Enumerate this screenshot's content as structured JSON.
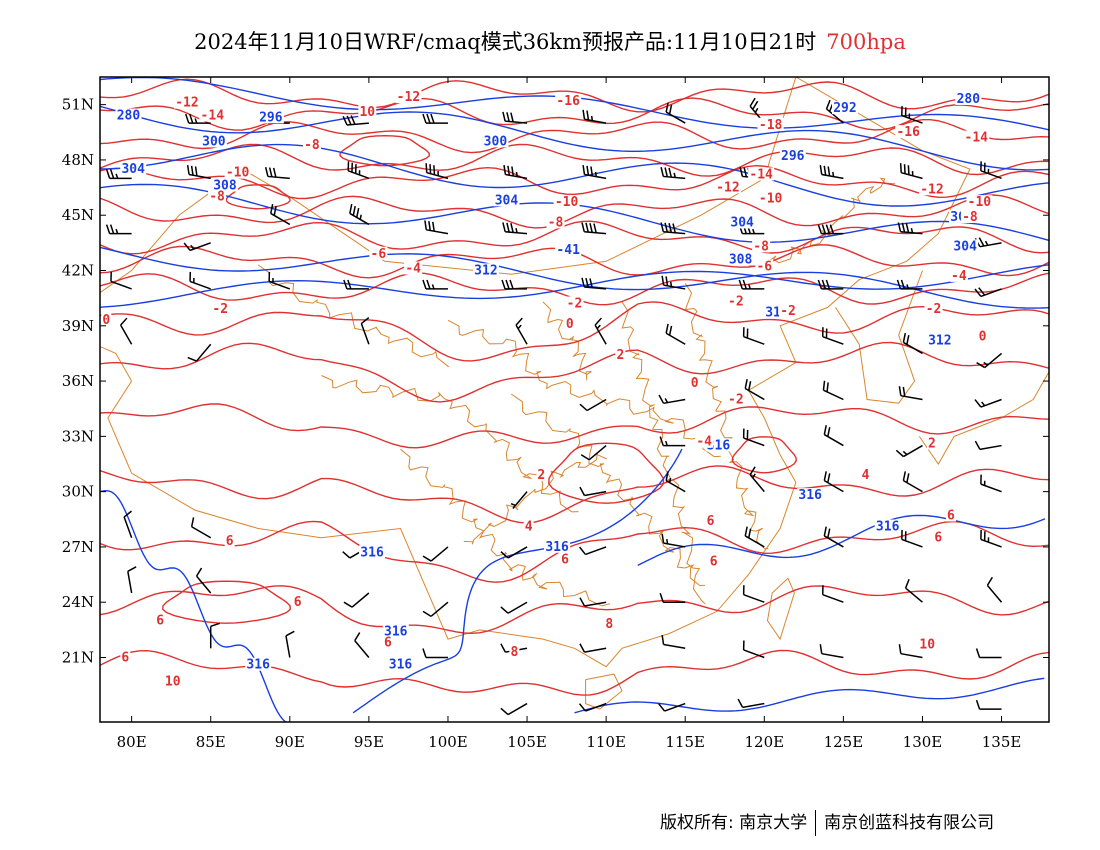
{
  "title": {
    "main": "2024年11月10日WRF/cmaq模式36km预报产品:11月10日21时",
    "level": "700hpa"
  },
  "map": {
    "lon_range": [
      78,
      138
    ],
    "lat_range": [
      17.5,
      52.5
    ],
    "x_ticks": [
      "80E",
      "85E",
      "90E",
      "95E",
      "100E",
      "105E",
      "110E",
      "115E",
      "120E",
      "125E",
      "130E",
      "135E"
    ],
    "x_tick_values": [
      80,
      85,
      90,
      95,
      100,
      105,
      110,
      115,
      120,
      125,
      130,
      135
    ],
    "y_ticks": [
      "51N",
      "48N",
      "45N",
      "42N",
      "39N",
      "36N",
      "33N",
      "30N",
      "27N",
      "24N",
      "21N"
    ],
    "y_tick_values": [
      51,
      48,
      45,
      42,
      39,
      36,
      33,
      30,
      27,
      24,
      21
    ],
    "colors": {
      "geopotential_contour": "#1a3fe0",
      "temperature_contour": "#e03030",
      "boundaries": "#d9862e",
      "wind_barbs": "#000000"
    },
    "geopotential_labels": [
      {
        "text": "280",
        "lon": 79.8,
        "lat": 50.3
      },
      {
        "text": "300",
        "lon": 85.2,
        "lat": 48.9
      },
      {
        "text": "296",
        "lon": 88.8,
        "lat": 50.2
      },
      {
        "text": "300",
        "lon": 103.0,
        "lat": 48.9
      },
      {
        "text": "304",
        "lon": 80.1,
        "lat": 47.4
      },
      {
        "text": "308",
        "lon": 85.9,
        "lat": 46.5
      },
      {
        "text": "304",
        "lon": 103.7,
        "lat": 45.7
      },
      {
        "text": "312",
        "lon": 102.4,
        "lat": 41.9
      },
      {
        "text": "-41",
        "lon": 107.6,
        "lat": 43.0
      },
      {
        "text": "292",
        "lon": 125.1,
        "lat": 50.7
      },
      {
        "text": "296",
        "lon": 121.8,
        "lat": 48.1
      },
      {
        "text": "304",
        "lon": 118.6,
        "lat": 44.5
      },
      {
        "text": "308",
        "lon": 118.5,
        "lat": 42.5
      },
      {
        "text": "312",
        "lon": 120.8,
        "lat": 39.6
      },
      {
        "text": "300",
        "lon": 132.5,
        "lat": 44.8
      },
      {
        "text": "304",
        "lon": 132.7,
        "lat": 43.2
      },
      {
        "text": "312",
        "lon": 131.1,
        "lat": 38.1
      },
      {
        "text": "280",
        "lon": 132.9,
        "lat": 51.2
      },
      {
        "text": "316",
        "lon": 117.1,
        "lat": 32.4
      },
      {
        "text": "316",
        "lon": 106.9,
        "lat": 26.9
      },
      {
        "text": "316",
        "lon": 95.2,
        "lat": 26.6
      },
      {
        "text": "316",
        "lon": 96.7,
        "lat": 22.3
      },
      {
        "text": "316",
        "lon": 97.0,
        "lat": 20.5
      },
      {
        "text": "316",
        "lon": 88.0,
        "lat": 20.5
      },
      {
        "text": "316",
        "lon": 122.9,
        "lat": 29.7
      },
      {
        "text": "316",
        "lon": 127.8,
        "lat": 28.0
      }
    ],
    "temperature_labels": [
      {
        "text": "-12",
        "lon": 83.5,
        "lat": 51.0
      },
      {
        "text": "-14",
        "lon": 85.1,
        "lat": 50.3
      },
      {
        "text": "-12",
        "lon": 97.5,
        "lat": 51.3
      },
      {
        "text": "-16",
        "lon": 107.6,
        "lat": 51.1
      },
      {
        "text": "10",
        "lon": 94.9,
        "lat": 50.5
      },
      {
        "text": "-8",
        "lon": 91.4,
        "lat": 48.7
      },
      {
        "text": "-10",
        "lon": 86.7,
        "lat": 47.2
      },
      {
        "text": "-8",
        "lon": 85.4,
        "lat": 45.9
      },
      {
        "text": "-10",
        "lon": 107.5,
        "lat": 45.6
      },
      {
        "text": "-8",
        "lon": 106.8,
        "lat": 44.5
      },
      {
        "text": "-6",
        "lon": 95.6,
        "lat": 42.8
      },
      {
        "text": "-4",
        "lon": 97.8,
        "lat": 42.0
      },
      {
        "text": "-2",
        "lon": 85.6,
        "lat": 39.8
      },
      {
        "text": "0",
        "lon": 78.4,
        "lat": 39.2
      },
      {
        "text": "-18",
        "lon": 120.4,
        "lat": 49.8
      },
      {
        "text": "-16",
        "lon": 129.1,
        "lat": 49.4
      },
      {
        "text": "-14",
        "lon": 133.4,
        "lat": 49.1
      },
      {
        "text": "-14",
        "lon": 119.8,
        "lat": 47.1
      },
      {
        "text": "-12",
        "lon": 117.7,
        "lat": 46.4
      },
      {
        "text": "-12",
        "lon": 130.6,
        "lat": 46.3
      },
      {
        "text": "-10",
        "lon": 120.4,
        "lat": 45.8
      },
      {
        "text": "-10",
        "lon": 133.6,
        "lat": 45.6
      },
      {
        "text": "-8",
        "lon": 133.0,
        "lat": 44.8
      },
      {
        "text": "-8",
        "lon": 119.8,
        "lat": 43.2
      },
      {
        "text": "-6",
        "lon": 120.0,
        "lat": 42.1
      },
      {
        "text": "-4",
        "lon": 132.3,
        "lat": 41.6
      },
      {
        "text": "-2",
        "lon": 118.2,
        "lat": 40.2
      },
      {
        "text": "-2",
        "lon": 121.5,
        "lat": 39.7
      },
      {
        "text": "-2",
        "lon": 130.7,
        "lat": 39.8
      },
      {
        "text": "-2",
        "lon": 108.0,
        "lat": 40.1
      },
      {
        "text": "0",
        "lon": 107.7,
        "lat": 39.0
      },
      {
        "text": "0",
        "lon": 133.8,
        "lat": 38.3
      },
      {
        "text": "2",
        "lon": 110.9,
        "lat": 37.3
      },
      {
        "text": "0",
        "lon": 115.6,
        "lat": 35.8
      },
      {
        "text": "-2",
        "lon": 118.2,
        "lat": 34.9
      },
      {
        "text": "-4",
        "lon": 116.2,
        "lat": 32.6
      },
      {
        "text": "2",
        "lon": 130.6,
        "lat": 32.5
      },
      {
        "text": "2",
        "lon": 105.9,
        "lat": 30.8
      },
      {
        "text": "4",
        "lon": 126.4,
        "lat": 30.8
      },
      {
        "text": "4",
        "lon": 105.1,
        "lat": 28.0
      },
      {
        "text": "6",
        "lon": 107.4,
        "lat": 26.2
      },
      {
        "text": "6",
        "lon": 86.2,
        "lat": 27.2
      },
      {
        "text": "6",
        "lon": 90.5,
        "lat": 23.9
      },
      {
        "text": "6",
        "lon": 116.6,
        "lat": 28.3
      },
      {
        "text": "6",
        "lon": 116.8,
        "lat": 26.1
      },
      {
        "text": "6",
        "lon": 131.8,
        "lat": 28.6
      },
      {
        "text": "6",
        "lon": 131.0,
        "lat": 27.4
      },
      {
        "text": "6",
        "lon": 81.8,
        "lat": 22.9
      },
      {
        "text": "6",
        "lon": 96.2,
        "lat": 21.7
      },
      {
        "text": "6",
        "lon": 79.6,
        "lat": 20.9
      },
      {
        "text": "10",
        "lon": 82.6,
        "lat": 19.6
      },
      {
        "text": "8",
        "lon": 110.2,
        "lat": 22.7
      },
      {
        "text": "8",
        "lon": 104.2,
        "lat": 21.2
      },
      {
        "text": "10",
        "lon": 130.3,
        "lat": 21.6
      }
    ],
    "wind_barbs": [
      {
        "lon": 85,
        "lat": 50.0,
        "dir": 270,
        "speed": 25
      },
      {
        "lon": 90,
        "lat": 50.0,
        "dir": 270,
        "speed": 25
      },
      {
        "lon": 95,
        "lat": 50.0,
        "dir": 265,
        "speed": 30
      },
      {
        "lon": 100,
        "lat": 50.0,
        "dir": 270,
        "speed": 30
      },
      {
        "lon": 105,
        "lat": 50.0,
        "dir": 275,
        "speed": 30
      },
      {
        "lon": 110,
        "lat": 50.0,
        "dir": 280,
        "speed": 25
      },
      {
        "lon": 115,
        "lat": 50.0,
        "dir": 300,
        "speed": 20
      },
      {
        "lon": 120,
        "lat": 50.0,
        "dir": 320,
        "speed": 25
      },
      {
        "lon": 125,
        "lat": 50.0,
        "dir": 310,
        "speed": 20
      },
      {
        "lon": 130,
        "lat": 50.0,
        "dir": 290,
        "speed": 25
      },
      {
        "lon": 80,
        "lat": 47.0,
        "dir": 270,
        "speed": 25
      },
      {
        "lon": 85,
        "lat": 47.0,
        "dir": 280,
        "speed": 30
      },
      {
        "lon": 90,
        "lat": 47.0,
        "dir": 275,
        "speed": 30
      },
      {
        "lon": 95,
        "lat": 47.0,
        "dir": 290,
        "speed": 35
      },
      {
        "lon": 100,
        "lat": 47.0,
        "dir": 285,
        "speed": 35
      },
      {
        "lon": 105,
        "lat": 47.0,
        "dir": 280,
        "speed": 35
      },
      {
        "lon": 110,
        "lat": 47.0,
        "dir": 280,
        "speed": 35
      },
      {
        "lon": 115,
        "lat": 47.0,
        "dir": 275,
        "speed": 35
      },
      {
        "lon": 120,
        "lat": 47.0,
        "dir": 275,
        "speed": 35
      },
      {
        "lon": 125,
        "lat": 47.0,
        "dir": 280,
        "speed": 35
      },
      {
        "lon": 130,
        "lat": 47.0,
        "dir": 285,
        "speed": 35
      },
      {
        "lon": 135,
        "lat": 47.0,
        "dir": 290,
        "speed": 25
      },
      {
        "lon": 80,
        "lat": 44.0,
        "dir": 270,
        "speed": 25
      },
      {
        "lon": 85,
        "lat": 43.5,
        "dir": 250,
        "speed": 15
      },
      {
        "lon": 90,
        "lat": 44.5,
        "dir": 300,
        "speed": 20
      },
      {
        "lon": 95,
        "lat": 44.5,
        "dir": 300,
        "speed": 35
      },
      {
        "lon": 100,
        "lat": 44.0,
        "dir": 280,
        "speed": 30
      },
      {
        "lon": 105,
        "lat": 44.0,
        "dir": 275,
        "speed": 35
      },
      {
        "lon": 110,
        "lat": 44.0,
        "dir": 275,
        "speed": 40
      },
      {
        "lon": 115,
        "lat": 44.0,
        "dir": 275,
        "speed": 40
      },
      {
        "lon": 120,
        "lat": 44.0,
        "dir": 270,
        "speed": 35
      },
      {
        "lon": 125,
        "lat": 44.0,
        "dir": 270,
        "speed": 40
      },
      {
        "lon": 130,
        "lat": 44.0,
        "dir": 275,
        "speed": 35
      },
      {
        "lon": 135,
        "lat": 43.5,
        "dir": 260,
        "speed": 25
      },
      {
        "lon": 80,
        "lat": 41.0,
        "dir": 290,
        "speed": 10
      },
      {
        "lon": 85,
        "lat": 41.0,
        "dir": 290,
        "speed": 15
      },
      {
        "lon": 90,
        "lat": 41.0,
        "dir": 290,
        "speed": 15
      },
      {
        "lon": 95,
        "lat": 41.0,
        "dir": 270,
        "speed": 20
      },
      {
        "lon": 100,
        "lat": 41.0,
        "dir": 270,
        "speed": 25
      },
      {
        "lon": 105,
        "lat": 41.0,
        "dir": 270,
        "speed": 30
      },
      {
        "lon": 110,
        "lat": 41.0,
        "dir": 275,
        "speed": 30
      },
      {
        "lon": 115,
        "lat": 41.0,
        "dir": 280,
        "speed": 25
      },
      {
        "lon": 120,
        "lat": 41.0,
        "dir": 270,
        "speed": 25
      },
      {
        "lon": 125,
        "lat": 41.0,
        "dir": 270,
        "speed": 30
      },
      {
        "lon": 130,
        "lat": 41.0,
        "dir": 270,
        "speed": 25
      },
      {
        "lon": 135,
        "lat": 41.0,
        "dir": 250,
        "speed": 20
      },
      {
        "lon": 80,
        "lat": 38.0,
        "dir": 330,
        "speed": 10
      },
      {
        "lon": 85,
        "lat": 38.0,
        "dir": 220,
        "speed": 10
      },
      {
        "lon": 95,
        "lat": 38.0,
        "dir": 340,
        "speed": 10
      },
      {
        "lon": 105,
        "lat": 38.0,
        "dir": 330,
        "speed": 15
      },
      {
        "lon": 110,
        "lat": 38.0,
        "dir": 330,
        "speed": 15
      },
      {
        "lon": 115,
        "lat": 38.0,
        "dir": 300,
        "speed": 20
      },
      {
        "lon": 120,
        "lat": 38.0,
        "dir": 290,
        "speed": 20
      },
      {
        "lon": 125,
        "lat": 38.0,
        "dir": 290,
        "speed": 20
      },
      {
        "lon": 130,
        "lat": 37.5,
        "dir": 300,
        "speed": 20
      },
      {
        "lon": 135,
        "lat": 37.5,
        "dir": 230,
        "speed": 15
      },
      {
        "lon": 110,
        "lat": 35.0,
        "dir": 240,
        "speed": 10
      },
      {
        "lon": 115,
        "lat": 35.0,
        "dir": 260,
        "speed": 15
      },
      {
        "lon": 120,
        "lat": 35.0,
        "dir": 300,
        "speed": 20
      },
      {
        "lon": 125,
        "lat": 35.0,
        "dir": 295,
        "speed": 20
      },
      {
        "lon": 130,
        "lat": 35.0,
        "dir": 280,
        "speed": 20
      },
      {
        "lon": 135,
        "lat": 35.0,
        "dir": 250,
        "speed": 15
      },
      {
        "lon": 110,
        "lat": 32.5,
        "dir": 230,
        "speed": 10
      },
      {
        "lon": 115,
        "lat": 32.5,
        "dir": 270,
        "speed": 15
      },
      {
        "lon": 120,
        "lat": 32.5,
        "dir": 290,
        "speed": 20
      },
      {
        "lon": 125,
        "lat": 32.5,
        "dir": 300,
        "speed": 20
      },
      {
        "lon": 130,
        "lat": 32.5,
        "dir": 240,
        "speed": 15
      },
      {
        "lon": 135,
        "lat": 32.5,
        "dir": 260,
        "speed": 10
      },
      {
        "lon": 105,
        "lat": 30.0,
        "dir": 220,
        "speed": 5
      },
      {
        "lon": 110,
        "lat": 30.0,
        "dir": 260,
        "speed": 10
      },
      {
        "lon": 115,
        "lat": 30.0,
        "dir": 300,
        "speed": 15
      },
      {
        "lon": 120,
        "lat": 30.0,
        "dir": 320,
        "speed": 15
      },
      {
        "lon": 125,
        "lat": 30.0,
        "dir": 300,
        "speed": 20
      },
      {
        "lon": 130,
        "lat": 30.0,
        "dir": 300,
        "speed": 20
      },
      {
        "lon": 135,
        "lat": 30.0,
        "dir": 290,
        "speed": 15
      },
      {
        "lon": 80,
        "lat": 27.5,
        "dir": 340,
        "speed": 10
      },
      {
        "lon": 85,
        "lat": 27.5,
        "dir": 300,
        "speed": 10
      },
      {
        "lon": 95,
        "lat": 27.0,
        "dir": 240,
        "speed": 10
      },
      {
        "lon": 100,
        "lat": 27.0,
        "dir": 230,
        "speed": 10
      },
      {
        "lon": 105,
        "lat": 27.0,
        "dir": 240,
        "speed": 10
      },
      {
        "lon": 110,
        "lat": 27.0,
        "dir": 250,
        "speed": 10
      },
      {
        "lon": 115,
        "lat": 27.0,
        "dir": 280,
        "speed": 15
      },
      {
        "lon": 120,
        "lat": 27.0,
        "dir": 300,
        "speed": 20
      },
      {
        "lon": 125,
        "lat": 27.0,
        "dir": 300,
        "speed": 20
      },
      {
        "lon": 130,
        "lat": 27.0,
        "dir": 290,
        "speed": 20
      },
      {
        "lon": 135,
        "lat": 27.0,
        "dir": 290,
        "speed": 25
      },
      {
        "lon": 80,
        "lat": 24.5,
        "dir": 350,
        "speed": 10
      },
      {
        "lon": 85,
        "lat": 24.5,
        "dir": 320,
        "speed": 10
      },
      {
        "lon": 95,
        "lat": 24.5,
        "dir": 230,
        "speed": 10
      },
      {
        "lon": 100,
        "lat": 24.0,
        "dir": 230,
        "speed": 10
      },
      {
        "lon": 105,
        "lat": 24.0,
        "dir": 240,
        "speed": 10
      },
      {
        "lon": 110,
        "lat": 24.0,
        "dir": 260,
        "speed": 10
      },
      {
        "lon": 115,
        "lat": 24.0,
        "dir": 270,
        "speed": 10
      },
      {
        "lon": 120,
        "lat": 24.0,
        "dir": 290,
        "speed": 10
      },
      {
        "lon": 125,
        "lat": 24.0,
        "dir": 290,
        "speed": 10
      },
      {
        "lon": 130,
        "lat": 24.0,
        "dir": 310,
        "speed": 10
      },
      {
        "lon": 135,
        "lat": 24.0,
        "dir": 320,
        "speed": 10
      },
      {
        "lon": 85,
        "lat": 21.5,
        "dir": 0,
        "speed": 10
      },
      {
        "lon": 90,
        "lat": 21.0,
        "dir": 350,
        "speed": 10
      },
      {
        "lon": 95,
        "lat": 21.0,
        "dir": 320,
        "speed": 10
      },
      {
        "lon": 100,
        "lat": 21.0,
        "dir": 270,
        "speed": 10
      },
      {
        "lon": 105,
        "lat": 21.5,
        "dir": 260,
        "speed": 10
      },
      {
        "lon": 110,
        "lat": 21.5,
        "dir": 260,
        "speed": 10
      },
      {
        "lon": 115,
        "lat": 21.5,
        "dir": 280,
        "speed": 10
      },
      {
        "lon": 120,
        "lat": 21.0,
        "dir": 290,
        "speed": 10
      },
      {
        "lon": 125,
        "lat": 21.0,
        "dir": 280,
        "speed": 10
      },
      {
        "lon": 130,
        "lat": 21.0,
        "dir": 280,
        "speed": 10
      },
      {
        "lon": 135,
        "lat": 21.0,
        "dir": 270,
        "speed": 10
      },
      {
        "lon": 105,
        "lat": 18.5,
        "dir": 240,
        "speed": 10
      },
      {
        "lon": 110,
        "lat": 18.5,
        "dir": 250,
        "speed": 10
      },
      {
        "lon": 115,
        "lat": 18.5,
        "dir": 250,
        "speed": 10
      },
      {
        "lon": 120,
        "lat": 18.5,
        "dir": 260,
        "speed": 10
      },
      {
        "lon": 135,
        "lat": 18.2,
        "dir": 270,
        "speed": 10
      }
    ]
  },
  "footer": {
    "copyright": "版权所有: 南京大学",
    "company": "南京创蓝科技有限公司"
  }
}
